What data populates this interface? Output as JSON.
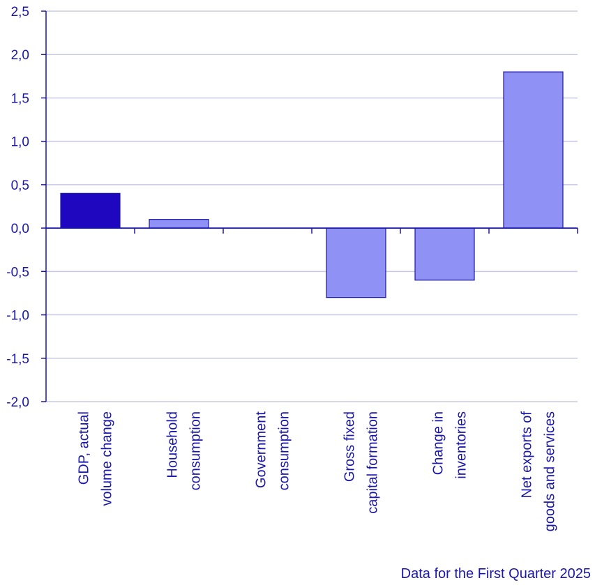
{
  "chart_data": {
    "type": "bar",
    "categories": [
      "GDP, actual volume change",
      "Household consumption",
      "Government consumption",
      "Gross fixed capital formation",
      "Change in inventories",
      "Net exports of goods and services"
    ],
    "category_lines": [
      [
        "GDP, actual",
        "volume change"
      ],
      [
        "Household",
        "consumption"
      ],
      [
        "Government",
        "consumption"
      ],
      [
        "Gross fixed",
        "capital formation"
      ],
      [
        "Change in",
        "inventories"
      ],
      [
        "Net exports of",
        "goods and services"
      ]
    ],
    "values": [
      0.4,
      0.1,
      0.0,
      -0.8,
      -0.6,
      1.8
    ],
    "ylim": [
      -2.0,
      2.5
    ],
    "yticks": [
      2.5,
      2.0,
      1.5,
      1.0,
      0.5,
      0.0,
      -0.5,
      -1.0,
      -1.5,
      -2.0
    ],
    "ytick_labels": [
      "2,5",
      "2,0",
      "1,5",
      "1,0",
      "0,5",
      "0,0",
      "-0,5",
      "-1,0",
      "-1,5",
      "-2,0"
    ],
    "title": "",
    "xlabel": "",
    "ylabel": "",
    "grid": true,
    "colors": {
      "highlight": "#1f06bf",
      "bar": "#8f91f5",
      "text": "#1a17a8",
      "grid": "#c8c8e6",
      "axis": "#1a17a8"
    }
  },
  "footnote": "Data for the First Quarter 2025"
}
